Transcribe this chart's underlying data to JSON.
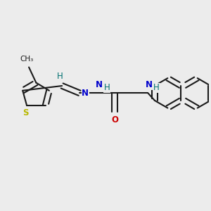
{
  "bg_color": "#ececec",
  "bond_color": "#1a1a1a",
  "S_color": "#b8b800",
  "N_color": "#0000cc",
  "O_color": "#cc0000",
  "H_color": "#007070",
  "line_width": 1.5,
  "figsize": [
    3.0,
    3.0
  ],
  "dpi": 100,
  "xlim": [
    0,
    10
  ],
  "ylim": [
    0,
    10
  ]
}
